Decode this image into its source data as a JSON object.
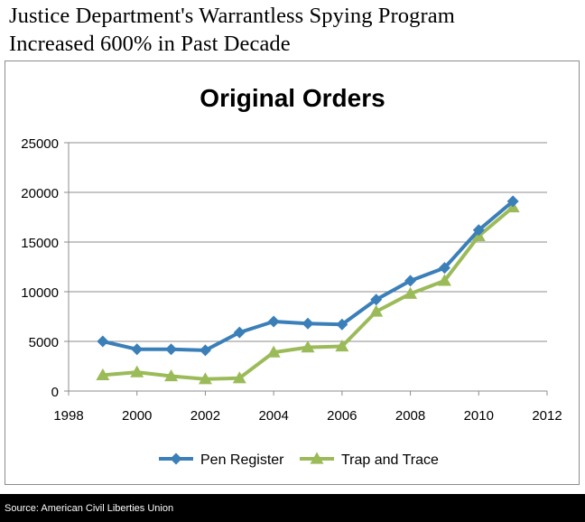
{
  "headline": {
    "line1": "Justice Department's Warrantless Spying Program",
    "line2": "Increased 600% in Past Decade"
  },
  "source": "Source: American Civil Liberties Union",
  "chart_data": {
    "type": "line",
    "title": "Original Orders",
    "xlabel": "",
    "ylabel": "",
    "xlim": [
      1998,
      2012
    ],
    "ylim": [
      0,
      25000
    ],
    "xticks": [
      1998,
      2000,
      2002,
      2004,
      2006,
      2008,
      2010,
      2012
    ],
    "yticks": [
      0,
      5000,
      10000,
      15000,
      20000,
      25000
    ],
    "grid": true,
    "legend_position": "bottom",
    "series": [
      {
        "name": "Pen Register",
        "color": "#3b7fb9",
        "marker": "diamond",
        "x": [
          1999,
          2000,
          2001,
          2002,
          2003,
          2004,
          2005,
          2006,
          2007,
          2008,
          2009,
          2010,
          2011
        ],
        "values": [
          5000,
          4200,
          4200,
          4100,
          5900,
          7000,
          6800,
          6700,
          9200,
          11100,
          12400,
          16200,
          19100
        ]
      },
      {
        "name": "Trap and Trace",
        "color": "#9bbb59",
        "marker": "triangle",
        "x": [
          1999,
          2000,
          2001,
          2002,
          2003,
          2004,
          2005,
          2006,
          2007,
          2008,
          2009,
          2010,
          2011
        ],
        "values": [
          1600,
          1900,
          1500,
          1200,
          1300,
          3900,
          4400,
          4500,
          8000,
          9800,
          11100,
          15600,
          18500
        ]
      }
    ]
  }
}
